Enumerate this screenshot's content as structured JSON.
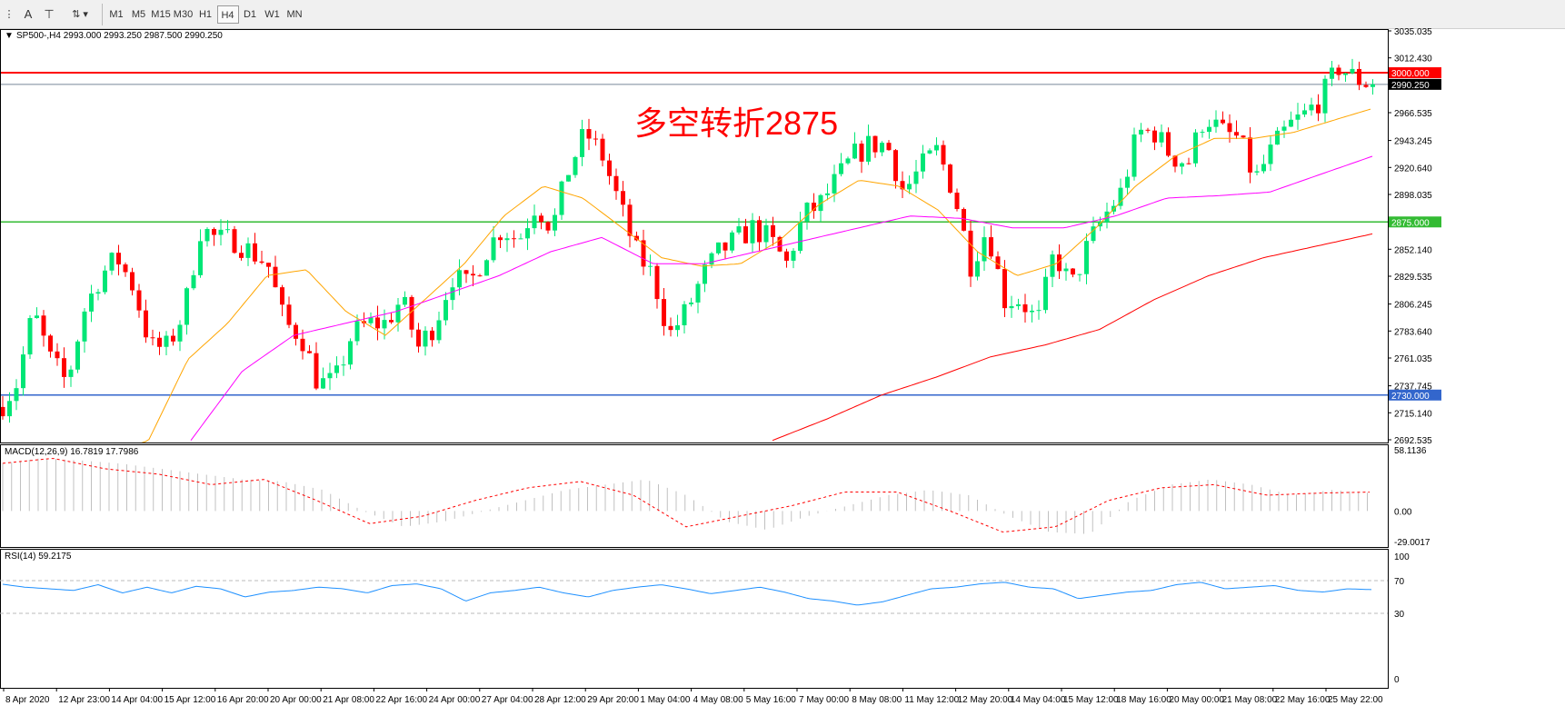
{
  "toolbar": {
    "icons": [
      "grid-icon",
      "text-icon",
      "text-label-icon",
      "arrows-icon"
    ],
    "text_label": "A",
    "timeframes": [
      "M1",
      "M5",
      "M15",
      "M30",
      "H1",
      "H4",
      "D1",
      "W1",
      "MN"
    ],
    "active": "H4"
  },
  "header": {
    "symbol": "SP500-,H4",
    "ohlc": "2993.000 2993.250 2987.500 2990.250"
  },
  "annotation": "多空转折2875",
  "colors": {
    "bull": "#00e676",
    "bear": "#ff0000",
    "ma_fast": "#ffa500",
    "ma_mid": "#ff00ff",
    "ma_slow": "#ff0000",
    "line_3000": "#ff0000",
    "line_2875": "#33bb33",
    "line_2730": "#3366cc",
    "rsi": "#1e90ff",
    "macd_hist": "#c0c0c0",
    "macd_signal": "#ff0000"
  },
  "chart_data": {
    "type": "candlestick",
    "price_axis": {
      "min": 2692.535,
      "max": 3035.035,
      "ticks": [
        "3035.035",
        "3012.430",
        "2966.535",
        "2943.245",
        "2920.640",
        "2898.035",
        "2852.140",
        "2829.535",
        "2806.245",
        "2783.640",
        "2761.035",
        "2737.745",
        "2715.140",
        "2692.535"
      ]
    },
    "levels": [
      {
        "value": 3000,
        "label": "3000.000"
      },
      {
        "value": 2875,
        "label": "2875.000"
      },
      {
        "value": 2730,
        "label": "2730.000"
      }
    ],
    "current_price": {
      "value": 2990.25,
      "label": "2990.250"
    },
    "time_labels": [
      "8 Apr 2020",
      "12 Apr 23:00",
      "14 Apr 04:00",
      "15 Apr 12:00",
      "16 Apr 20:00",
      "20 Apr 00:00",
      "21 Apr 08:00",
      "22 Apr 16:00",
      "24 Apr 00:00",
      "27 Apr 04:00",
      "28 Apr 12:00",
      "29 Apr 20:00",
      "1 May 04:00",
      "4 May 08:00",
      "5 May 16:00",
      "7 May 00:00",
      "8 May 08:00",
      "11 May 12:00",
      "12 May 20:00",
      "14 May 04:00",
      "15 May 12:00",
      "18 May 16:00",
      "20 May 00:00",
      "21 May 08:00",
      "22 May 16:00",
      "25 May 22:00"
    ],
    "close_path": [
      2720,
      2740,
      2800,
      2760,
      2740,
      2800,
      2830,
      2845,
      2820,
      2770,
      2770,
      2800,
      2870,
      2860,
      2860,
      2850,
      2840,
      2790,
      2780,
      2740,
      2740,
      2780,
      2790,
      2790,
      2810,
      2770,
      2790,
      2830,
      2820,
      2850,
      2870,
      2860,
      2890,
      2870,
      2920,
      2950,
      2930,
      2890,
      2850,
      2830,
      2780,
      2800,
      2830,
      2850,
      2860,
      2870,
      2860,
      2840,
      2880,
      2890,
      2910,
      2930,
      2940,
      2940,
      2900,
      2920,
      2935,
      2900,
      2840,
      2870,
      2810,
      2810,
      2790,
      2850,
      2820,
      2855,
      2880,
      2900,
      2950,
      2950,
      2930,
      2925,
      2965,
      2950,
      2945,
      2910,
      2935,
      2955,
      2965,
      2980,
      3005,
      2995,
      2990.25
    ],
    "ma_fast": [
      2680,
      2692,
      2760,
      2790,
      2830,
      2835,
      2800,
      2780,
      2810,
      2840,
      2880,
      2905,
      2895,
      2870,
      2845,
      2838,
      2840,
      2860,
      2890,
      2910,
      2905,
      2885,
      2850,
      2830,
      2840,
      2870,
      2905,
      2930,
      2945,
      2945,
      2950,
      2960,
      2970
    ],
    "ma_mid": [
      2692,
      2750,
      2780,
      2790,
      2800,
      2815,
      2830,
      2850,
      2862,
      2840,
      2840,
      2850,
      2860,
      2870,
      2880,
      2878,
      2870,
      2870,
      2880,
      2895,
      2897,
      2900,
      2915,
      2930
    ],
    "ma_slow": [
      2692,
      2710,
      2730,
      2745,
      2762,
      2772,
      2785,
      2810,
      2830,
      2845,
      2855,
      2865
    ],
    "macd": {
      "label": "MACD(12,26,9) 16.7819 17.7986",
      "axis": [
        "58.1136",
        "0.00",
        "-29.0017"
      ],
      "range": [
        -29.0017,
        58.1136
      ],
      "hist": [
        45,
        50,
        48,
        45,
        40,
        35,
        30,
        28,
        20,
        0,
        -15,
        -10,
        0,
        10,
        20,
        25,
        30,
        15,
        -10,
        -18,
        -5,
        5,
        15,
        20,
        15,
        -5,
        -20,
        -22,
        10,
        25,
        30,
        25,
        15,
        20,
        17
      ],
      "signal": [
        45,
        50,
        40,
        35,
        25,
        30,
        10,
        -12,
        -5,
        10,
        22,
        28,
        15,
        -15,
        -5,
        5,
        18,
        18,
        0,
        -20,
        -15,
        10,
        22,
        25,
        15,
        17,
        18
      ]
    },
    "rsi": {
      "label": "RSI(14) 59.2175",
      "axis": [
        "100",
        "70",
        "30",
        "0"
      ],
      "levels": [
        70,
        30
      ],
      "values": [
        66,
        62,
        60,
        58,
        65,
        55,
        62,
        55,
        63,
        60,
        50,
        56,
        58,
        62,
        60,
        55,
        64,
        66,
        60,
        45,
        55,
        58,
        62,
        55,
        50,
        58,
        62,
        65,
        60,
        54,
        58,
        62,
        56,
        48,
        45,
        40,
        44,
        52,
        60,
        62,
        66,
        68,
        62,
        60,
        48,
        52,
        56,
        58,
        65,
        68,
        60,
        62,
        64,
        58,
        56,
        60,
        59
      ]
    }
  }
}
